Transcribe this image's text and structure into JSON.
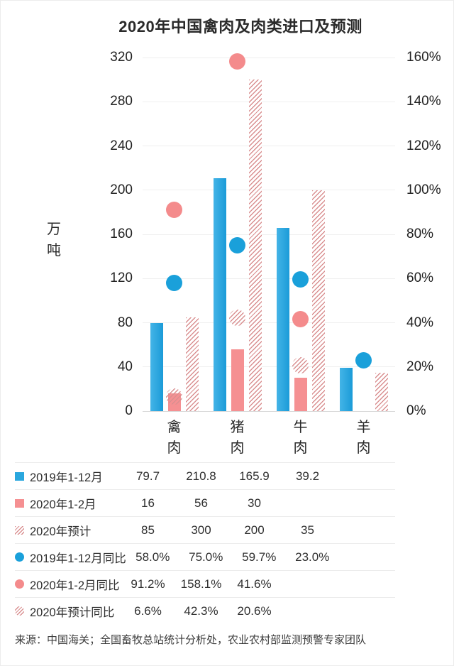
{
  "page": {
    "source": "来源：中国海关；全国畜牧总站统计分析处，农业农村部监测预警专家团队"
  },
  "chart_data": {
    "type": "bar",
    "subtype": "grouped-bars-with-scatter-overlay",
    "title": "2020年中国禽肉及肉类进口及预测",
    "categories": [
      "禽肉",
      "猪肉",
      "牛肉",
      "羊肉"
    ],
    "left_axis": {
      "label": "万吨",
      "min": 0,
      "max": 320,
      "step": 40
    },
    "right_axis": {
      "min": 0,
      "max": 160,
      "step": 20,
      "unit": "%"
    },
    "grid": true,
    "legend_position": "bottom-table",
    "bar_series": [
      {
        "name": "2019年1-12月",
        "style": "blue",
        "values": [
          79.7,
          210.8,
          165.9,
          39.2
        ]
      },
      {
        "name": "2020年1-2月",
        "style": "pink",
        "values": [
          16,
          56,
          30,
          null
        ]
      },
      {
        "name": "2020年预计",
        "style": "hatch",
        "values": [
          85,
          300,
          200,
          35
        ]
      }
    ],
    "scatter_series": [
      {
        "name": "2019年1-12月同比",
        "style": "blue",
        "axis": "right",
        "values_pct": [
          58.0,
          75.0,
          59.7,
          23.0
        ]
      },
      {
        "name": "2020年1-2月同比",
        "style": "pink",
        "axis": "right",
        "values_pct": [
          91.2,
          158.1,
          41.6,
          null
        ]
      },
      {
        "name": "2020年预计同比",
        "style": "hatch",
        "axis": "right",
        "values_pct": [
          6.6,
          42.3,
          20.6,
          null
        ]
      }
    ]
  },
  "legend_table": {
    "rows": [
      {
        "marker": "square-blue",
        "label": "2019年1-12月",
        "values": [
          "79.7",
          "210.8",
          "165.9",
          "39.2"
        ]
      },
      {
        "marker": "square-pink",
        "label": "2020年1-2月",
        "values": [
          "16",
          "56",
          "30",
          ""
        ]
      },
      {
        "marker": "square-hatch",
        "label": "2020年预计",
        "values": [
          "85",
          "300",
          "200",
          "35"
        ]
      },
      {
        "marker": "dot-blue",
        "label": "2019年1-12月同比",
        "values": [
          "58.0%",
          "75.0%",
          "59.7%",
          "23.0%"
        ]
      },
      {
        "marker": "dot-pink",
        "label": "2020年1-2月同比",
        "values": [
          "91.2%",
          "158.1%",
          "41.6%",
          ""
        ]
      },
      {
        "marker": "dot-hatch",
        "label": "2020年预计同比",
        "values": [
          "6.6%",
          "42.3%",
          "20.6%",
          ""
        ]
      }
    ]
  },
  "colors": {
    "blue": "#2aa7de",
    "pink": "#f59092",
    "hatch_line": "#d98f90",
    "grid": "#efefef",
    "baseline": "#d9d9d9",
    "text": "#2b2b2b"
  }
}
